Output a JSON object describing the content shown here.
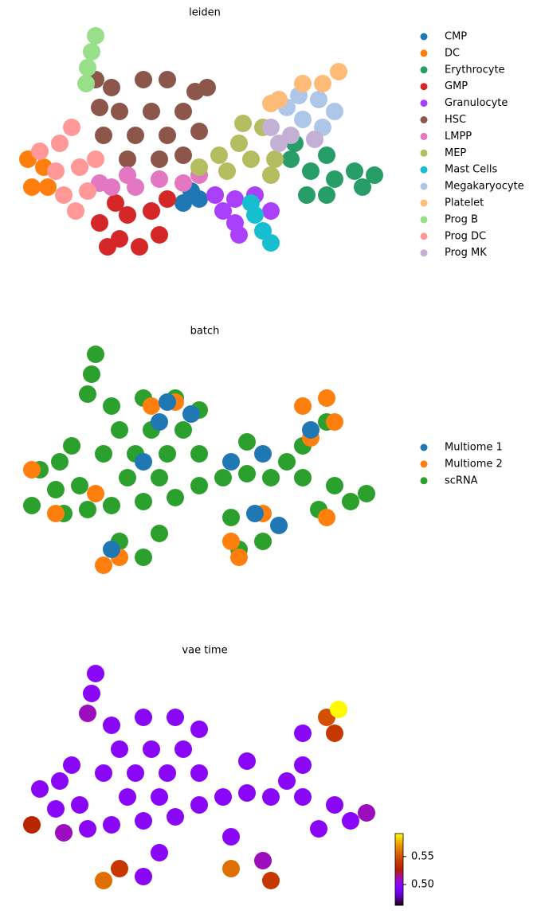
{
  "chart_data": [
    {
      "type": "scatter",
      "title": "leiden",
      "xlim": [
        5,
        98
      ],
      "ylim": [
        0,
        60
      ],
      "legend": "right",
      "series": [
        {
          "name": "CMP",
          "color": "#1f77b4",
          "x": [
            48,
            50,
            46
          ],
          "y": [
            18,
            16,
            15
          ]
        },
        {
          "name": "DC",
          "color": "#ff7f0e",
          "x": [
            8,
            11,
            7,
            12
          ],
          "y": [
            19,
            24,
            26,
            19
          ]
        },
        {
          "name": "Erythrocyte",
          "color": "#279e68",
          "x": [
            73,
            78,
            82,
            84,
            89,
            94,
            77,
            82,
            91,
            74
          ],
          "y": [
            26,
            23,
            27,
            21,
            23,
            22,
            17,
            17,
            19,
            30
          ]
        },
        {
          "name": "GMP",
          "color": "#d62728",
          "x": [
            25,
            30,
            35,
            40,
            32,
            38,
            42,
            27,
            29
          ],
          "y": [
            10,
            6,
            4,
            7,
            12,
            13,
            16,
            4,
            15
          ]
        },
        {
          "name": "Granulocyte",
          "color": "#aa40fc",
          "x": [
            54,
            59,
            64,
            59,
            60,
            68,
            56
          ],
          "y": [
            17,
            16,
            17,
            10,
            7,
            13,
            13
          ]
        },
        {
          "name": "HSC",
          "color": "#8c564b",
          "x": [
            28,
            36,
            42,
            49,
            52,
            30,
            38,
            46,
            26,
            34,
            42,
            50,
            32,
            40,
            25,
            24,
            46
          ],
          "y": [
            44,
            46,
            46,
            43,
            44,
            38,
            38,
            38,
            32,
            32,
            32,
            33,
            26,
            26,
            39,
            46,
            27
          ]
        },
        {
          "name": "LMPP",
          "color": "#e377c2",
          "x": [
            28,
            34,
            40,
            46,
            50,
            32,
            25
          ],
          "y": [
            19,
            19,
            21,
            20,
            22,
            22,
            20
          ]
        },
        {
          "name": "MEP",
          "color": "#b5bd61",
          "x": [
            50,
            55,
            60,
            66,
            63,
            69,
            61,
            57,
            68
          ],
          "y": [
            24,
            27,
            30,
            34,
            26,
            26,
            35,
            23,
            22
          ]
        },
        {
          "name": "Mast Cells",
          "color": "#17becf",
          "x": [
            64,
            66,
            68,
            63
          ],
          "y": [
            12,
            8,
            5,
            15
          ]
        },
        {
          "name": "Megakaryocyte",
          "color": "#aec7e8",
          "x": [
            75,
            80,
            84,
            76,
            81,
            72
          ],
          "y": [
            42,
            41,
            38,
            36,
            34,
            39
          ]
        },
        {
          "name": "Platelet",
          "color": "#ffbb78",
          "x": [
            76,
            81,
            85,
            70,
            68
          ],
          "y": [
            45,
            45,
            48,
            41,
            40
          ]
        },
        {
          "name": "Prog B",
          "color": "#98df8a",
          "x": [
            24,
            23,
            22,
            21.6
          ],
          "y": [
            57,
            53,
            49,
            45
          ]
        },
        {
          "name": "Prog DC",
          "color": "#ff9896",
          "x": [
            10,
            15,
            18,
            14,
            20,
            16,
            22,
            19,
            24
          ],
          "y": [
            28,
            30,
            34,
            23,
            24,
            17,
            18,
            13,
            26
          ]
        },
        {
          "name": "Prog MK",
          "color": "#c5b0d5",
          "x": [
            68,
            73,
            79,
            70
          ],
          "y": [
            34,
            32,
            31,
            30
          ]
        }
      ]
    },
    {
      "type": "scatter",
      "title": "batch",
      "xlim": [
        5,
        98
      ],
      "ylim": [
        0,
        60
      ],
      "legend": "right",
      "series": [
        {
          "name": "Multiome 1",
          "color": "#1f77b4",
          "x": [
            40,
            42,
            28,
            66,
            64,
            70,
            78,
            36,
            48,
            58
          ],
          "y": [
            40,
            45,
            8,
            32,
            17,
            14,
            38,
            30,
            42,
            30
          ]
        },
        {
          "name": "Multiome 2",
          "color": "#ff7f0e",
          "x": [
            76,
            82,
            84,
            78,
            14,
            8,
            26,
            30,
            44,
            38,
            66,
            58,
            60,
            82,
            24
          ],
          "y": [
            44,
            46,
            40,
            36,
            17,
            28,
            4,
            6,
            45,
            44,
            17,
            10,
            6,
            16,
            22
          ]
        },
        {
          "name": "scRNA",
          "color": "#2ca02c",
          "x": [
            24,
            23,
            22,
            28,
            36,
            44,
            50,
            30,
            38,
            46,
            26,
            34,
            42,
            50,
            32,
            40,
            10,
            15,
            18,
            14,
            20,
            16,
            22,
            8,
            28,
            36,
            44,
            30,
            36,
            40,
            50,
            56,
            62,
            62,
            68,
            58,
            60,
            66,
            76,
            84,
            92,
            80,
            76,
            82,
            72,
            88
          ],
          "y": [
            57,
            52,
            47,
            44,
            46,
            46,
            43,
            38,
            38,
            38,
            32,
            32,
            32,
            32,
            26,
            26,
            28,
            30,
            34,
            23,
            24,
            17,
            18,
            19,
            19,
            20,
            21,
            10,
            6,
            12,
            24,
            26,
            27,
            35,
            26,
            16,
            8,
            10,
            26,
            24,
            22,
            18,
            34,
            40,
            30,
            20
          ]
        }
      ]
    },
    {
      "type": "colorscatter",
      "title": "vae time",
      "xlim": [
        5,
        98
      ],
      "ylim": [
        0,
        60
      ],
      "colormap": "gnuplot",
      "clim": [
        0.463,
        0.591
      ],
      "cticks": [
        {
          "value": 0.5,
          "label": "0.50"
        },
        0.55
      ],
      "x": [
        24,
        23,
        22,
        28,
        36,
        44,
        50,
        30,
        38,
        46,
        26,
        34,
        42,
        50,
        32,
        40,
        10,
        15,
        18,
        14,
        20,
        16,
        22,
        8,
        28,
        36,
        44,
        36,
        40,
        50,
        56,
        62,
        62,
        68,
        58,
        66,
        76,
        84,
        92,
        80,
        76,
        76,
        72,
        88,
        30,
        26,
        58,
        68,
        82,
        84,
        85
      ],
      "y": [
        57,
        52,
        47,
        44,
        46,
        46,
        43,
        38,
        38,
        38,
        32,
        32,
        32,
        32,
        26,
        26,
        28,
        30,
        34,
        23,
        24,
        17,
        18,
        19,
        19,
        20,
        21,
        6,
        12,
        24,
        26,
        27,
        35,
        26,
        16,
        10,
        26,
        24,
        22,
        18,
        34,
        42,
        30,
        20,
        8,
        5,
        8,
        5,
        46,
        42,
        48
      ],
      "values": [
        0.5,
        0.5,
        0.51,
        0.5,
        0.5,
        0.5,
        0.5,
        0.5,
        0.5,
        0.5,
        0.5,
        0.5,
        0.5,
        0.5,
        0.5,
        0.5,
        0.5,
        0.5,
        0.5,
        0.5,
        0.5,
        0.51,
        0.5,
        0.53,
        0.5,
        0.5,
        0.5,
        0.5,
        0.5,
        0.5,
        0.5,
        0.5,
        0.5,
        0.5,
        0.5,
        0.51,
        0.5,
        0.5,
        0.51,
        0.5,
        0.5,
        0.5,
        0.5,
        0.5,
        0.54,
        0.56,
        0.56,
        0.54,
        0.55,
        0.54,
        0.59
      ]
    }
  ]
}
